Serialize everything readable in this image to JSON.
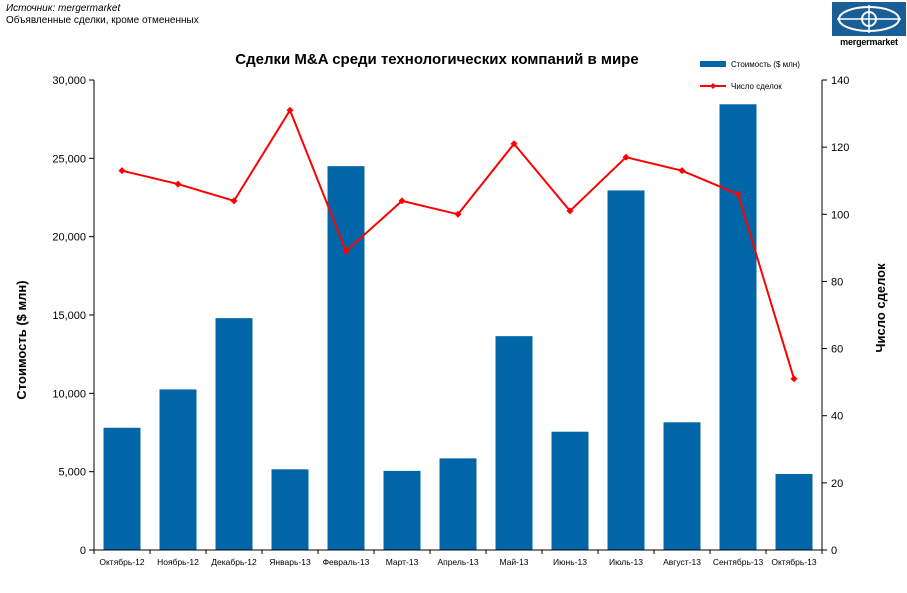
{
  "header": {
    "source_line": "Источник: mergermarket",
    "note_line": "Объявленные сделки, кроме отмененных",
    "logo_text": "mergermarket"
  },
  "colors": {
    "bar": "#0066a8",
    "line": "#ff0000",
    "logo": "#1a5e96"
  },
  "chart_data": {
    "type": "bar+line",
    "title": "Сделки M&A среди технологических компаний в  мире",
    "categories": [
      "Октябрь-12",
      "Ноябрь-12",
      "Декабрь-12",
      "Январь-13",
      "Февраль-13",
      "Март-13",
      "Апрель-13",
      "Май-13",
      "Июнь-13",
      "Июль-13",
      "Август-13",
      "Сентябрь-13",
      "Октябрь-13"
    ],
    "series": [
      {
        "name": "Стоимость  ($ млн)",
        "type": "bar",
        "axis": "left",
        "values": [
          7800,
          10250,
          14800,
          5150,
          24500,
          5050,
          5850,
          13650,
          7550,
          22950,
          8150,
          28450,
          4850
        ]
      },
      {
        "name": "Число сделок",
        "type": "line",
        "axis": "right",
        "values": [
          113,
          109,
          104,
          131,
          89,
          104,
          100,
          121,
          101,
          117,
          113,
          106,
          51
        ]
      }
    ],
    "ylabel_left": "Стоимость  ($ млн)",
    "ylabel_right": "Число сделок",
    "ylim_left": [
      0,
      30000
    ],
    "ylim_right": [
      0,
      140
    ],
    "yticks_left": [
      "0",
      "5,000",
      "10,000",
      "15,000",
      "20,000",
      "25,000",
      "30,000"
    ],
    "yticks_right": [
      "0",
      "20",
      "40",
      "60",
      "80",
      "100",
      "120",
      "140"
    ],
    "grid": false,
    "legend_position": "top-right"
  }
}
